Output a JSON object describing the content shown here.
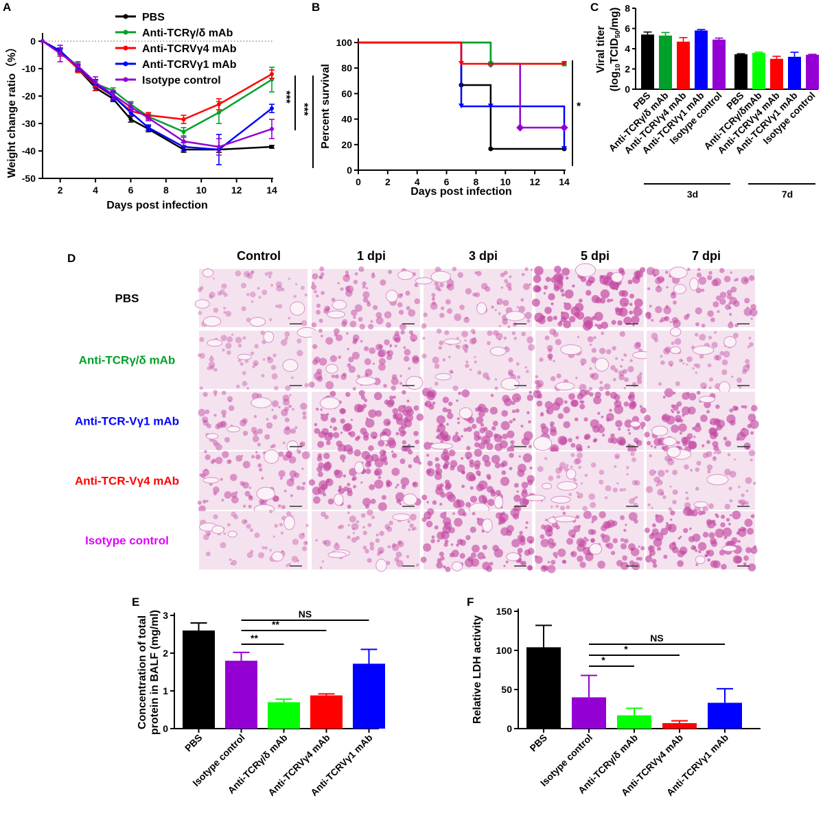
{
  "colors": {
    "PBS": "#000000",
    "TCRgd": "#00a02a",
    "TCRVg4": "#ff0000",
    "TCRVg1": "#0000ff",
    "Isotype": "#9400d3",
    "TCRgd_bright": "#00ff00",
    "Isotype_bright": "#cc00ff",
    "Isotype_pink": "#e000ff",
    "stain_light": "#f4e2ef",
    "stain_dark": "#c44aa2"
  },
  "panel_labels": {
    "A": "A",
    "B": "B",
    "C": "C",
    "D": "D",
    "E": "E",
    "F": "F"
  },
  "chart_data": [
    {
      "id": "A",
      "type": "line",
      "xlabel": "Days post infection",
      "ylabel": "Weight change ratio（%）",
      "xlim": [
        1,
        14
      ],
      "ylim": [
        -50,
        0
      ],
      "xticks": [
        2,
        4,
        6,
        8,
        10,
        12,
        14
      ],
      "yticks": [
        0,
        -10,
        -20,
        -30,
        -40,
        -50
      ],
      "x": [
        1,
        2,
        3,
        4,
        5,
        6,
        7,
        9,
        11,
        14
      ],
      "series": [
        {
          "name": "PBS",
          "color_key": "PBS",
          "values": [
            0,
            -3.5,
            -10,
            -17,
            -21,
            -28.5,
            -32,
            -39.5,
            -39.5,
            -38.5
          ],
          "errors": [
            0,
            1,
            1,
            1,
            1,
            1,
            1,
            1,
            1,
            0.5
          ]
        },
        {
          "name": "Anti-TCRγ/δ mAb",
          "color_key": "TCRgd",
          "values": [
            0,
            -4,
            -9,
            -15.5,
            -18,
            -23,
            -27.5,
            -33,
            -26,
            -14
          ],
          "errors": [
            0,
            1,
            1,
            1,
            1,
            1,
            1,
            1.5,
            4,
            4.5
          ]
        },
        {
          "name": "Anti-TCRVγ4 mAb",
          "color_key": "TCRVg4",
          "values": [
            0,
            -4,
            -10,
            -16,
            -20,
            -25.5,
            -27,
            -28.5,
            -23,
            -12
          ],
          "errors": [
            0,
            1.5,
            1.5,
            2,
            1.5,
            1.5,
            1,
            1.5,
            2,
            1.5
          ]
        },
        {
          "name": "Anti-TCRVγ1 mAb",
          "color_key": "TCRVg1",
          "values": [
            0,
            -3.5,
            -9.5,
            -15.5,
            -20,
            -26,
            -31.5,
            -38.5,
            -39.5,
            -24.5
          ],
          "errors": [
            0,
            1,
            1,
            1.5,
            1.5,
            1,
            1,
            1.5,
            5.5,
            1.5
          ]
        },
        {
          "name": "Isotype control",
          "color_key": "Isotype",
          "values": [
            0,
            -4.5,
            -9,
            -15,
            -19.5,
            -24,
            -28,
            -36.5,
            -38.5,
            -32
          ],
          "errors": [
            0,
            3,
            1.5,
            2,
            1.5,
            1.5,
            1,
            1.5,
            3,
            3.5
          ]
        }
      ],
      "annotations": [
        "***",
        "***"
      ]
    },
    {
      "id": "B",
      "type": "line",
      "step": true,
      "xlabel": "Days post infection",
      "ylabel": "Percent survival",
      "xlim": [
        0,
        14
      ],
      "ylim": [
        0,
        100
      ],
      "xticks": [
        0,
        2,
        4,
        6,
        8,
        10,
        12,
        14
      ],
      "yticks": [
        0,
        20,
        40,
        60,
        80,
        100
      ],
      "series": [
        {
          "name": "PBS",
          "color_key": "PBS",
          "steps": [
            [
              0,
              100
            ],
            [
              7,
              66.7
            ],
            [
              9,
              16.7
            ],
            [
              14,
              16.7
            ]
          ]
        },
        {
          "name": "Anti-TCRγ/δ mAb",
          "color_key": "TCRgd",
          "steps": [
            [
              0,
              100
            ],
            [
              9,
              83.3
            ],
            [
              14,
              83.3
            ]
          ]
        },
        {
          "name": "Anti-TCRVγ4 mAb",
          "color_key": "TCRVg4",
          "steps": [
            [
              0,
              100
            ],
            [
              7,
              83.3
            ],
            [
              14,
              83.3
            ]
          ]
        },
        {
          "name": "Anti-TCRVγ1 mAb",
          "color_key": "TCRVg1",
          "steps": [
            [
              0,
              100
            ],
            [
              7,
              50
            ],
            [
              9,
              50
            ],
            [
              14,
              16.7
            ]
          ]
        },
        {
          "name": "Isotype control",
          "color_key": "Isotype",
          "steps": [
            [
              0,
              100
            ],
            [
              9,
              83.3
            ],
            [
              11,
              33.3
            ],
            [
              14,
              33.3
            ]
          ]
        }
      ],
      "annotations": [
        "*"
      ]
    },
    {
      "id": "C",
      "type": "bar",
      "ylabel_line1": "Viral titer",
      "ylabel_line2_pre": "(log",
      "ylabel_line2_sub1": "10",
      "ylabel_line2_mid": "TCID",
      "ylabel_line2_sub2": "50",
      "ylabel_line2_post": "/mg)",
      "ylim": [
        0,
        8
      ],
      "yticks": [
        0,
        2,
        4,
        6,
        8
      ],
      "groups": [
        {
          "label": "3d",
          "categories": [
            "PBS",
            "Anti-TCRγ/δ mAb",
            "Anti-TCRVγ4 mAb",
            "Anti-TCRVγ1 mAb",
            "Isotype control"
          ],
          "color_keys": [
            "PBS",
            "TCRgd",
            "TCRVg4",
            "TCRVg1",
            "Isotype"
          ],
          "values": [
            5.4,
            5.3,
            4.7,
            5.8,
            4.9
          ],
          "errors": [
            0.25,
            0.3,
            0.4,
            0.1,
            0.15
          ]
        },
        {
          "label": "7d",
          "categories": [
            "PBS",
            "Anti-TCRγ/δmAb",
            "Anti-TCRVγ4 mAb",
            "Anti-TCRVγ1 mAb",
            "Isotype control"
          ],
          "color_keys": [
            "PBS",
            "TCRgd_bright",
            "TCRVg4",
            "TCRVg1",
            "Isotype"
          ],
          "values": [
            3.45,
            3.6,
            3.0,
            3.2,
            3.4
          ],
          "errors": [
            0.05,
            0.07,
            0.25,
            0.45,
            0.05
          ]
        }
      ]
    },
    {
      "id": "E",
      "type": "bar",
      "ylabel_line1": "Concentration of total",
      "ylabel_line2": "protein in BALF (mg/ml)",
      "ylim": [
        0,
        3
      ],
      "yticks": [
        0,
        1,
        2,
        3
      ],
      "categories": [
        "PBS",
        "Isotype control",
        "Anti-TCRγ/δ mAb",
        "Anti-TCRVγ4 mAb",
        "Anti-TCRVγ1 mAb"
      ],
      "color_keys": [
        "PBS",
        "Isotype",
        "TCRgd_bright",
        "TCRVg4",
        "TCRVg1"
      ],
      "values": [
        2.6,
        1.8,
        0.7,
        0.88,
        1.72
      ],
      "errors": [
        0.2,
        0.22,
        0.08,
        0.04,
        0.38
      ],
      "significance": [
        {
          "from": 1,
          "to": 2,
          "label": "**"
        },
        {
          "from": 1,
          "to": 3,
          "label": "**"
        },
        {
          "from": 1,
          "to": 4,
          "label": "NS"
        }
      ]
    },
    {
      "id": "F",
      "type": "bar",
      "ylabel": "Relative LDH activity",
      "ylim": [
        0,
        150
      ],
      "yticks": [
        0,
        50,
        100,
        150
      ],
      "categories": [
        "PBS",
        "Isotype control",
        "Anti-TCRγ/δ mAb",
        "Anti-TCRVγ4 mAb",
        "Anti-TCRVγ1 mAb"
      ],
      "color_keys": [
        "PBS",
        "Isotype",
        "TCRgd_bright",
        "TCRVg4",
        "TCRVg1"
      ],
      "values": [
        104,
        40,
        17,
        7,
        33
      ],
      "errors": [
        28,
        28,
        9,
        3,
        18
      ],
      "significance": [
        {
          "from": 1,
          "to": 2,
          "label": "*"
        },
        {
          "from": 1,
          "to": 3,
          "label": "*"
        },
        {
          "from": 1,
          "to": 4,
          "label": "NS"
        }
      ]
    }
  ],
  "histology": {
    "columns": [
      "Control",
      "1 dpi",
      "3 dpi",
      "5 dpi",
      "7 dpi"
    ],
    "rows": [
      {
        "label": "PBS",
        "color_key": "PBS",
        "densities": [
          0.22,
          0.45,
          0.4,
          0.82,
          0.55
        ]
      },
      {
        "label": "Anti-TCRγ/δ mAb",
        "color_key": "TCRgd",
        "densities": [
          0.25,
          0.55,
          0.35,
          0.4,
          0.3
        ]
      },
      {
        "label": "Anti-TCR-Vγ1 mAb",
        "color_key": "TCRVg1",
        "densities": [
          0.4,
          0.75,
          0.75,
          0.75,
          0.7
        ]
      },
      {
        "label": "Anti-TCR-Vγ4 mAb",
        "color_key": "TCRVg4",
        "densities": [
          0.5,
          0.7,
          0.75,
          0.25,
          0.35
        ]
      },
      {
        "label": "Isotype control",
        "color_key": "Isotype_pink",
        "densities": [
          0.25,
          0.35,
          0.7,
          0.65,
          0.75
        ]
      }
    ]
  }
}
